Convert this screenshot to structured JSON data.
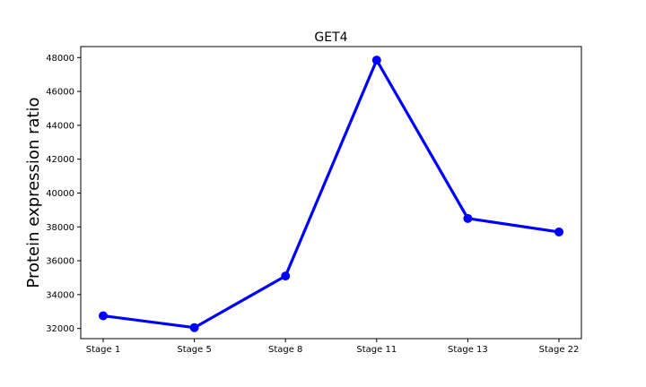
{
  "chart_data": {
    "type": "line",
    "title": "GET4",
    "xlabel": "",
    "ylabel": "Protein expression ratio",
    "categories": [
      "Stage 1",
      "Stage 5",
      "Stage 8",
      "Stage 11",
      "Stage 13",
      "Stage 22"
    ],
    "series": [
      {
        "values": [
          32750,
          32050,
          35100,
          47850,
          38500,
          37700
        ]
      }
    ],
    "ylim": [
      31400,
      48650
    ],
    "yticks": [
      32000,
      34000,
      36000,
      38000,
      40000,
      42000,
      44000,
      46000,
      48000
    ],
    "ytick_labels": [
      "32000",
      "34000",
      "36000",
      "38000",
      "40000",
      "42000",
      "44000",
      "46000",
      "48000"
    ],
    "grid": false,
    "line_color": "#0000ff"
  }
}
